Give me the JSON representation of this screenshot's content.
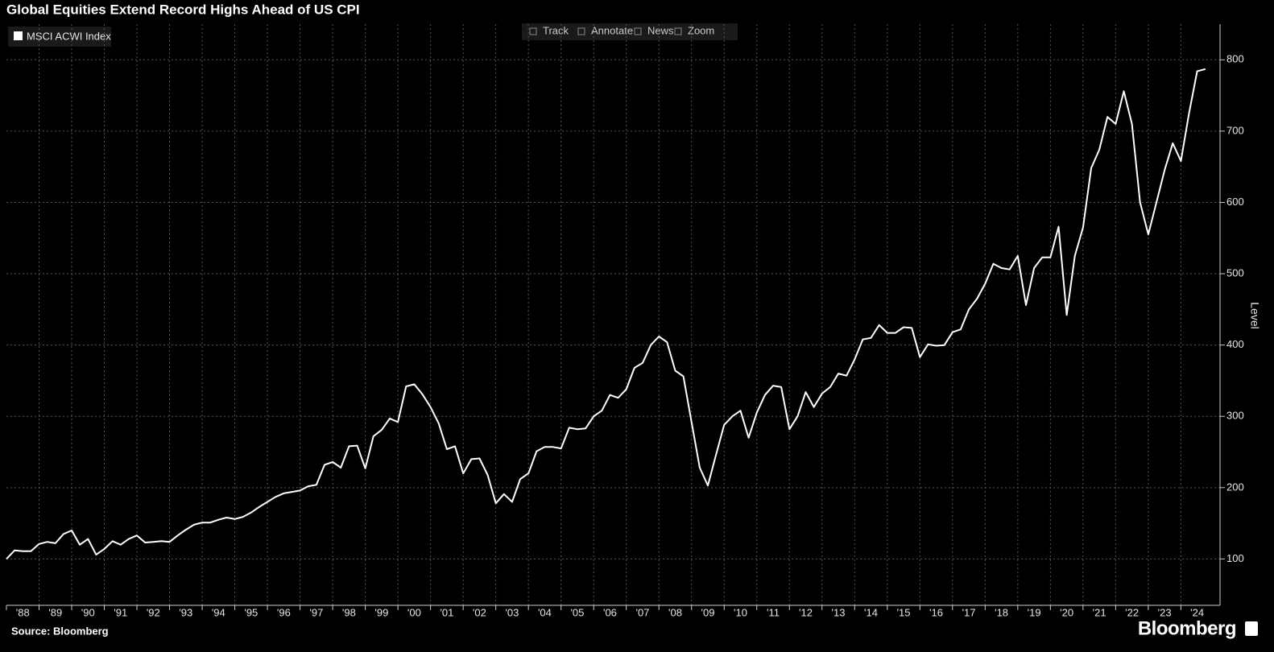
{
  "chart_data": {
    "type": "line",
    "title": "Global Equities Extend Record Highs Ahead of US CPI",
    "y_axis_label": "Level",
    "source": "Source: Bloomberg",
    "logo": "Bloomberg",
    "toolbar": [
      "Track",
      "Annotate",
      "News",
      "Zoom"
    ],
    "legend": "top-left",
    "grid": true,
    "xlim": [
      1988,
      2025.2
    ],
    "xticks": [
      {
        "value": 1988,
        "label": "'88"
      },
      {
        "value": 1989,
        "label": "'89"
      },
      {
        "value": 1990,
        "label": "'90"
      },
      {
        "value": 1991,
        "label": "'91"
      },
      {
        "value": 1992,
        "label": "'92"
      },
      {
        "value": 1993,
        "label": "'93"
      },
      {
        "value": 1994,
        "label": "'94"
      },
      {
        "value": 1995,
        "label": "'95"
      },
      {
        "value": 1996,
        "label": "'96"
      },
      {
        "value": 1997,
        "label": "'97"
      },
      {
        "value": 1998,
        "label": "'98"
      },
      {
        "value": 1999,
        "label": "'99"
      },
      {
        "value": 2000,
        "label": "'00"
      },
      {
        "value": 2001,
        "label": "'01"
      },
      {
        "value": 2002,
        "label": "'02"
      },
      {
        "value": 2003,
        "label": "'03"
      },
      {
        "value": 2004,
        "label": "'04"
      },
      {
        "value": 2005,
        "label": "'05"
      },
      {
        "value": 2006,
        "label": "'06"
      },
      {
        "value": 2007,
        "label": "'07"
      },
      {
        "value": 2008,
        "label": "'08"
      },
      {
        "value": 2009,
        "label": "'09"
      },
      {
        "value": 2010,
        "label": "'10"
      },
      {
        "value": 2011,
        "label": "'11"
      },
      {
        "value": 2012,
        "label": "'12"
      },
      {
        "value": 2013,
        "label": "'13"
      },
      {
        "value": 2014,
        "label": "'14"
      },
      {
        "value": 2015,
        "label": "'15"
      },
      {
        "value": 2016,
        "label": "'16"
      },
      {
        "value": 2017,
        "label": "'17"
      },
      {
        "value": 2018,
        "label": "'18"
      },
      {
        "value": 2019,
        "label": "'19"
      },
      {
        "value": 2020,
        "label": "'20"
      },
      {
        "value": 2021,
        "label": "'21"
      },
      {
        "value": 2022,
        "label": "'22"
      },
      {
        "value": 2023,
        "label": "'23"
      },
      {
        "value": 2024,
        "label": "'24"
      }
    ],
    "ylim": [
      35,
      850
    ],
    "yticks": [
      100,
      200,
      300,
      400,
      500,
      600,
      700,
      800
    ],
    "x": [
      1988,
      1988.25,
      1988.5,
      1988.75,
      1989,
      1989.25,
      1989.5,
      1989.75,
      1990,
      1990.25,
      1990.5,
      1990.75,
      1991,
      1991.25,
      1991.5,
      1991.75,
      1992,
      1992.25,
      1992.5,
      1992.75,
      1993,
      1993.25,
      1993.5,
      1993.75,
      1994,
      1994.25,
      1994.5,
      1994.75,
      1995,
      1995.25,
      1995.5,
      1995.75,
      1996,
      1996.25,
      1996.5,
      1996.75,
      1997,
      1997.25,
      1997.5,
      1997.75,
      1998,
      1998.25,
      1998.5,
      1998.75,
      1999,
      1999.25,
      1999.5,
      1999.75,
      2000,
      2000.25,
      2000.5,
      2000.75,
      2001,
      2001.25,
      2001.5,
      2001.75,
      2002,
      2002.25,
      2002.5,
      2002.75,
      2003,
      2003.25,
      2003.5,
      2003.75,
      2004,
      2004.25,
      2004.5,
      2004.75,
      2005,
      2005.25,
      2005.5,
      2005.75,
      2006,
      2006.25,
      2006.5,
      2006.75,
      2007,
      2007.25,
      2007.5,
      2007.75,
      2008,
      2008.25,
      2008.5,
      2008.75,
      2009,
      2009.25,
      2009.5,
      2009.75,
      2010,
      2010.25,
      2010.5,
      2010.75,
      2011,
      2011.25,
      2011.5,
      2011.75,
      2012,
      2012.25,
      2012.5,
      2012.75,
      2013,
      2013.25,
      2013.5,
      2013.75,
      2014,
      2014.25,
      2014.5,
      2014.75,
      2015,
      2015.25,
      2015.5,
      2015.75,
      2016,
      2016.25,
      2016.5,
      2016.75,
      2017,
      2017.25,
      2017.5,
      2017.75,
      2018,
      2018.25,
      2018.5,
      2018.75,
      2019,
      2019.25,
      2019.5,
      2019.75,
      2020,
      2020.25,
      2020.5,
      2020.75,
      2021,
      2021.25,
      2021.5,
      2021.75,
      2022,
      2022.25,
      2022.5,
      2022.75,
      2023,
      2023.25,
      2023.5,
      2023.75,
      2024,
      2024.25,
      2024.5,
      2024.75
    ],
    "series": [
      {
        "name": "MSCI ACWI Index",
        "color": "#ffffff",
        "values": [
          100,
          112,
          111,
          111,
          121,
          124,
          122,
          135,
          140,
          120,
          128,
          106,
          114,
          125,
          120,
          128,
          133,
          123,
          124,
          125,
          124,
          133,
          141,
          148,
          151,
          151,
          155,
          158,
          156,
          159,
          165,
          173,
          180,
          187,
          192,
          194,
          196,
          202,
          204,
          232,
          236,
          228,
          258,
          259,
          227,
          272,
          281,
          297,
          292,
          342,
          345,
          331,
          313,
          290,
          254,
          258,
          220,
          240,
          241,
          218,
          178,
          191,
          180,
          212,
          220,
          251,
          257,
          257,
          255,
          284,
          282,
          283,
          300,
          308,
          330,
          326,
          338,
          368,
          375,
          400,
          412,
          404,
          364,
          356,
          292,
          228,
          203,
          246,
          288,
          300,
          308,
          270,
          305,
          330,
          343,
          341,
          282,
          300,
          334,
          313,
          332,
          341,
          360,
          357,
          380,
          408,
          410,
          428,
          417,
          417,
          425,
          424,
          383,
          401,
          399,
          400,
          418,
          422,
          450,
          465,
          486,
          514,
          508,
          506,
          525,
          456,
          508,
          523,
          523,
          566,
          442,
          525,
          565,
          648,
          674,
          720,
          710,
          756,
          710,
          600,
          555,
          600,
          645,
          683,
          658,
          725,
          784,
          787
        ]
      }
    ]
  }
}
